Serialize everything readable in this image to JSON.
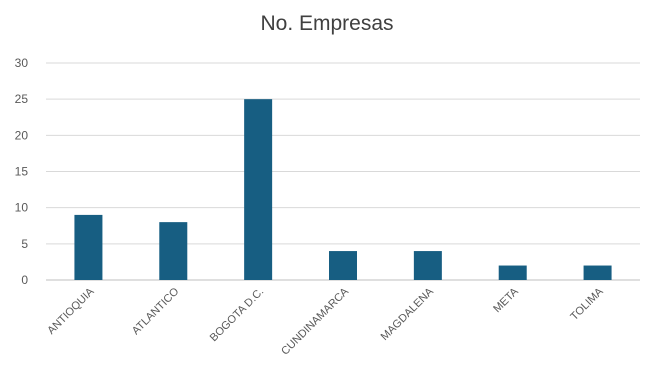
{
  "chart_data": {
    "type": "bar",
    "title": "No. Empresas",
    "xlabel": "",
    "ylabel": "",
    "categories": [
      "ANTIOQUIA",
      "ATLANTICO",
      "BOGOTA D.C.",
      "CUNDINAMARCA",
      "MAGDALENA",
      "META",
      "TOLIMA"
    ],
    "values": [
      9,
      8,
      25,
      4,
      4,
      2,
      2
    ],
    "ylim": [
      0,
      30
    ],
    "yticks": [
      0,
      5,
      10,
      15,
      20,
      25,
      30
    ],
    "grid": true,
    "legend": "none",
    "colors": {
      "bar": "#175E82",
      "grid": "#D9D9D9",
      "axis": "#BFBFBF"
    }
  }
}
